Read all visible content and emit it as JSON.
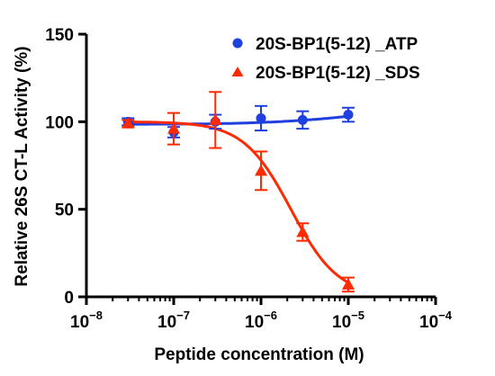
{
  "chart_data": {
    "type": "scatter",
    "title": "",
    "xlabel": "Peptide concentration (M)",
    "ylabel": "Relative 26S CT-L Activity (%)",
    "xscale": "log",
    "xlim": [
      1e-08,
      0.0001
    ],
    "ylim": [
      0,
      150
    ],
    "x_tick_labels": [
      {
        "base": "10",
        "exp": "−8"
      },
      {
        "base": "10",
        "exp": "−7"
      },
      {
        "base": "10",
        "exp": "−6"
      },
      {
        "base": "10",
        "exp": "−5"
      },
      {
        "base": "10",
        "exp": "−4"
      }
    ],
    "y_ticks": [
      0,
      50,
      100,
      150
    ],
    "y_tick_labels": [
      "0",
      "50",
      "100",
      "150"
    ],
    "grid": false,
    "legend_position": "top-right",
    "series": [
      {
        "name": "20S-BP1(5-12) _ATP",
        "color": "#1f3fe0",
        "marker": "circle",
        "x": [
          3e-08,
          1e-07,
          3e-07,
          1e-06,
          3e-06,
          1e-05
        ],
        "y": [
          100,
          94,
          100,
          102,
          101,
          104
        ],
        "error": [
          2,
          3,
          4,
          7,
          5,
          4
        ],
        "fit": "flat"
      },
      {
        "name": "20S-BP1(5-12) _SDS",
        "color": "#ff2a00",
        "marker": "triangle",
        "x": [
          3e-08,
          1e-07,
          3e-07,
          1e-06,
          3e-06,
          1e-05
        ],
        "y": [
          99,
          96,
          101,
          72,
          37,
          7
        ],
        "error": [
          2,
          9,
          16,
          11,
          5,
          4
        ],
        "fit": "sigmoid"
      }
    ]
  }
}
